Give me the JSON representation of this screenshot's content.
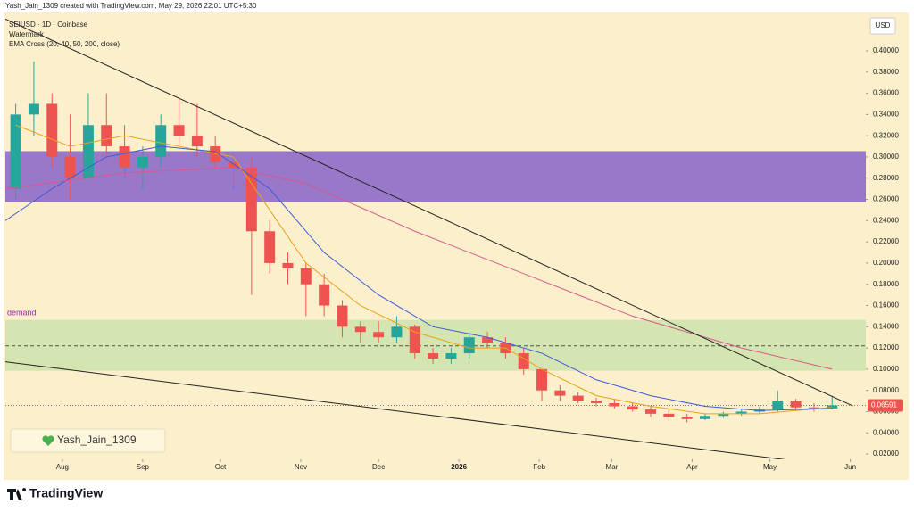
{
  "header": {
    "caption": "Yash_Jain_1309 created with TradingView.com, May 29, 2026 22:01 UTC+5:30",
    "brand": "TradingView"
  },
  "chart_data": {
    "type": "candlestick",
    "title": "SEIUSD · 1D · Coinbase",
    "subtitle": "Watermark",
    "indicator": "EMA Cross (20, 40, 50, 200, close)",
    "y_axis_label": "USD",
    "watermark": "Yash_Jain_1309",
    "up_color": "#26a69a",
    "down_color": "#ef5350",
    "x": [
      0,
      7,
      14,
      21,
      28,
      35,
      42,
      49,
      56,
      63,
      70,
      77,
      84,
      91,
      98,
      105,
      112,
      119,
      126,
      133,
      140,
      147,
      154,
      161,
      168,
      175,
      182,
      189,
      196,
      203,
      210,
      217,
      224,
      231,
      238,
      245,
      252,
      259,
      266,
      273,
      280,
      287,
      294,
      301,
      308,
      315
    ],
    "open": [
      0.27,
      0.34,
      0.35,
      0.3,
      0.28,
      0.33,
      0.31,
      0.29,
      0.3,
      0.33,
      0.32,
      0.31,
      0.295,
      0.29,
      0.23,
      0.2,
      0.195,
      0.18,
      0.16,
      0.14,
      0.135,
      0.13,
      0.14,
      0.115,
      0.11,
      0.115,
      0.13,
      0.125,
      0.115,
      0.1,
      0.08,
      0.075,
      0.07,
      0.068,
      0.065,
      0.062,
      0.058,
      0.055,
      0.053,
      0.056,
      0.058,
      0.06,
      0.062,
      0.07,
      0.064,
      0.063
    ],
    "high": [
      0.35,
      0.39,
      0.36,
      0.34,
      0.36,
      0.36,
      0.33,
      0.31,
      0.34,
      0.355,
      0.35,
      0.32,
      0.305,
      0.3,
      0.24,
      0.21,
      0.2,
      0.19,
      0.165,
      0.145,
      0.145,
      0.15,
      0.142,
      0.12,
      0.12,
      0.135,
      0.135,
      0.13,
      0.12,
      0.1,
      0.085,
      0.078,
      0.073,
      0.072,
      0.068,
      0.065,
      0.062,
      0.058,
      0.058,
      0.06,
      0.062,
      0.065,
      0.08,
      0.072,
      0.068,
      0.075
    ],
    "low": [
      0.26,
      0.32,
      0.29,
      0.26,
      0.28,
      0.3,
      0.28,
      0.27,
      0.29,
      0.31,
      0.3,
      0.29,
      0.27,
      0.17,
      0.19,
      0.18,
      0.15,
      0.15,
      0.13,
      0.125,
      0.125,
      0.125,
      0.11,
      0.105,
      0.105,
      0.11,
      0.12,
      0.11,
      0.095,
      0.07,
      0.07,
      0.068,
      0.065,
      0.063,
      0.06,
      0.055,
      0.052,
      0.05,
      0.052,
      0.054,
      0.056,
      0.058,
      0.06,
      0.062,
      0.06,
      0.062
    ],
    "close": [
      0.34,
      0.35,
      0.3,
      0.28,
      0.33,
      0.31,
      0.29,
      0.3,
      0.33,
      0.32,
      0.31,
      0.295,
      0.29,
      0.23,
      0.2,
      0.195,
      0.18,
      0.16,
      0.14,
      0.135,
      0.13,
      0.14,
      0.115,
      0.11,
      0.115,
      0.13,
      0.125,
      0.115,
      0.1,
      0.08,
      0.075,
      0.07,
      0.068,
      0.065,
      0.062,
      0.058,
      0.055,
      0.053,
      0.056,
      0.058,
      0.06,
      0.062,
      0.07,
      0.064,
      0.063,
      0.0659
    ],
    "lines": [
      {
        "color": "#e8a317",
        "x": [
          0,
          21,
          42,
          63,
          84,
          98,
          112,
          133,
          154,
          175,
          189,
          203,
          224,
          245,
          266,
          287,
          315
        ],
        "values": [
          0.33,
          0.31,
          0.32,
          0.31,
          0.3,
          0.25,
          0.2,
          0.16,
          0.135,
          0.12,
          0.12,
          0.1,
          0.075,
          0.065,
          0.058,
          0.058,
          0.064
        ]
      },
      {
        "color": "#3d5bd9",
        "x": [
          -4,
          14,
          35,
          56,
          77,
          98,
          119,
          140,
          161,
          182,
          203,
          224,
          245,
          266,
          287,
          315
        ],
        "values": [
          0.24,
          0.27,
          0.3,
          0.31,
          0.305,
          0.27,
          0.21,
          0.17,
          0.14,
          0.13,
          0.115,
          0.09,
          0.075,
          0.065,
          0.061,
          0.063
        ]
      },
      {
        "color": "#d45a8a",
        "x": [
          -4,
          42,
          84,
          112,
          154,
          196,
          238,
          280,
          315
        ],
        "values": [
          0.27,
          0.285,
          0.29,
          0.275,
          0.23,
          0.19,
          0.15,
          0.12,
          0.1
        ]
      },
      {
        "color": "#222222",
        "x": [
          -4,
          323
        ],
        "values": [
          0.43,
          0.0654
        ]
      },
      {
        "color": "#222222",
        "x": [
          -4,
          299
        ],
        "values": [
          0.107,
          0.014
        ]
      }
    ],
    "zones": [
      {
        "range": [
          0.258,
          0.305
        ],
        "color": "#9370c8"
      },
      {
        "range": [
          0.099,
          0.146
        ],
        "color": "#d3e4b0",
        "label": "demand"
      }
    ],
    "level": 0.122,
    "last_price": {
      "value": 0.06591,
      "label": "0.06591"
    },
    "xlim": [
      -4,
      328
    ],
    "xticks": [
      {
        "value": 18,
        "label": "Aug"
      },
      {
        "value": 49,
        "label": "Sep"
      },
      {
        "value": 79,
        "label": "Oct"
      },
      {
        "value": 110,
        "label": "Nov"
      },
      {
        "value": 140,
        "label": "Dec"
      },
      {
        "value": 171,
        "label": "2026"
      },
      {
        "value": 202,
        "label": "Feb"
      },
      {
        "value": 230,
        "label": "Mar"
      },
      {
        "value": 261,
        "label": "Apr"
      },
      {
        "value": 291,
        "label": "May"
      },
      {
        "value": 322,
        "label": "Jun"
      }
    ],
    "ylim": [
      0.0024,
      0.4353
    ],
    "yticks": [
      {
        "value": 0.02,
        "label": "0.02000"
      },
      {
        "value": 0.04,
        "label": "0.04000"
      },
      {
        "value": 0.06,
        "label": "0.06000"
      },
      {
        "value": 0.08,
        "label": "0.08000"
      },
      {
        "value": 0.1,
        "label": "0.10000"
      },
      {
        "value": 0.12,
        "label": "0.12000"
      },
      {
        "value": 0.14,
        "label": "0.14000"
      },
      {
        "value": 0.16,
        "label": "0.16000"
      },
      {
        "value": 0.18,
        "label": "0.18000"
      },
      {
        "value": 0.2,
        "label": "0.20000"
      },
      {
        "value": 0.22,
        "label": "0.22000"
      },
      {
        "value": 0.24,
        "label": "0.24000"
      },
      {
        "value": 0.26,
        "label": "0.26000"
      },
      {
        "value": 0.28,
        "label": "0.28000"
      },
      {
        "value": 0.3,
        "label": "0.30000"
      },
      {
        "value": 0.32,
        "label": "0.32000"
      },
      {
        "value": 0.34,
        "label": "0.34000"
      },
      {
        "value": 0.36,
        "label": "0.36000"
      },
      {
        "value": 0.38,
        "label": "0.38000"
      },
      {
        "value": 0.4,
        "label": "0.40000"
      }
    ]
  }
}
